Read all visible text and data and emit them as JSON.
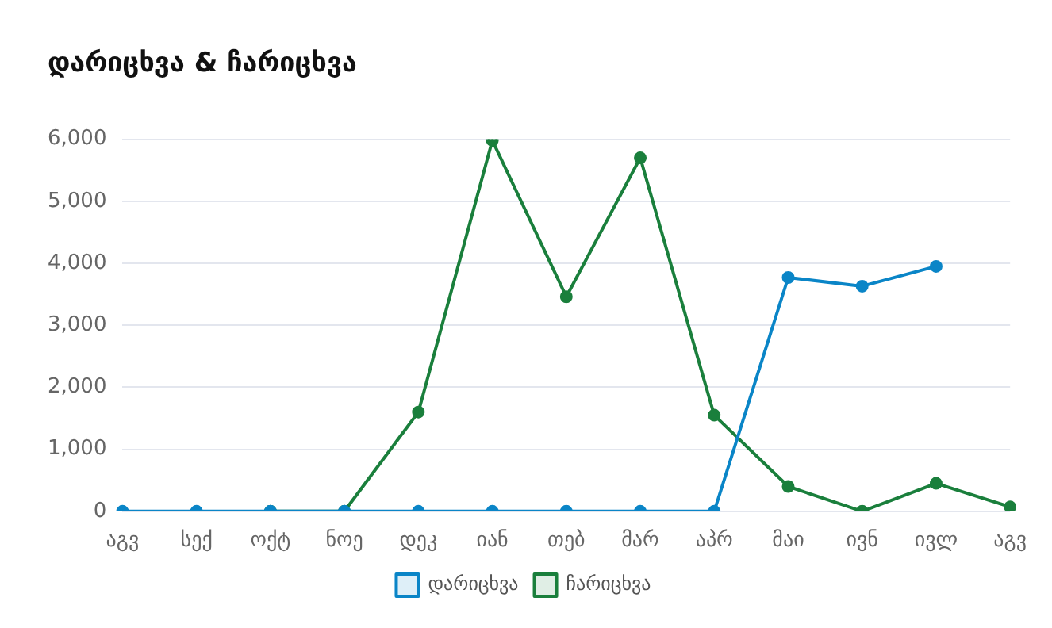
{
  "chart_data": {
    "type": "line",
    "title": "დარიცხვა & ჩარიცხვა",
    "categories": [
      "აგვ",
      "სექ",
      "ოქტ",
      "ნოე",
      "დეკ",
      "იან",
      "თებ",
      "მარ",
      "აპრ",
      "მაი",
      "ივნ",
      "ივლ",
      "აგვ"
    ],
    "series": [
      {
        "name": "დარიცხვა",
        "color": "#0a85c7",
        "values": [
          0,
          0,
          0,
          0,
          0,
          0,
          0,
          0,
          0,
          3770,
          3630,
          3950,
          null
        ]
      },
      {
        "name": "ჩარიცხვა",
        "color": "#1a7f3c",
        "values": [
          null,
          null,
          0,
          0,
          1600,
          5980,
          3460,
          5700,
          1550,
          400,
          0,
          450,
          70
        ]
      }
    ],
    "ylim": [
      0,
      6000
    ],
    "yticks": [
      0,
      {
        "value": 1000,
        "label": "1,000"
      },
      {
        "value": 2000,
        "label": "2,000"
      },
      {
        "value": 3000,
        "label": "3,000"
      },
      {
        "value": 4000,
        "label": "4,000"
      },
      {
        "value": 5000,
        "label": "5,000"
      },
      {
        "value": 6000,
        "label": "6,000"
      }
    ],
    "grid": "y",
    "legend": "bottom",
    "marker": "circle",
    "line_style": "solid"
  }
}
